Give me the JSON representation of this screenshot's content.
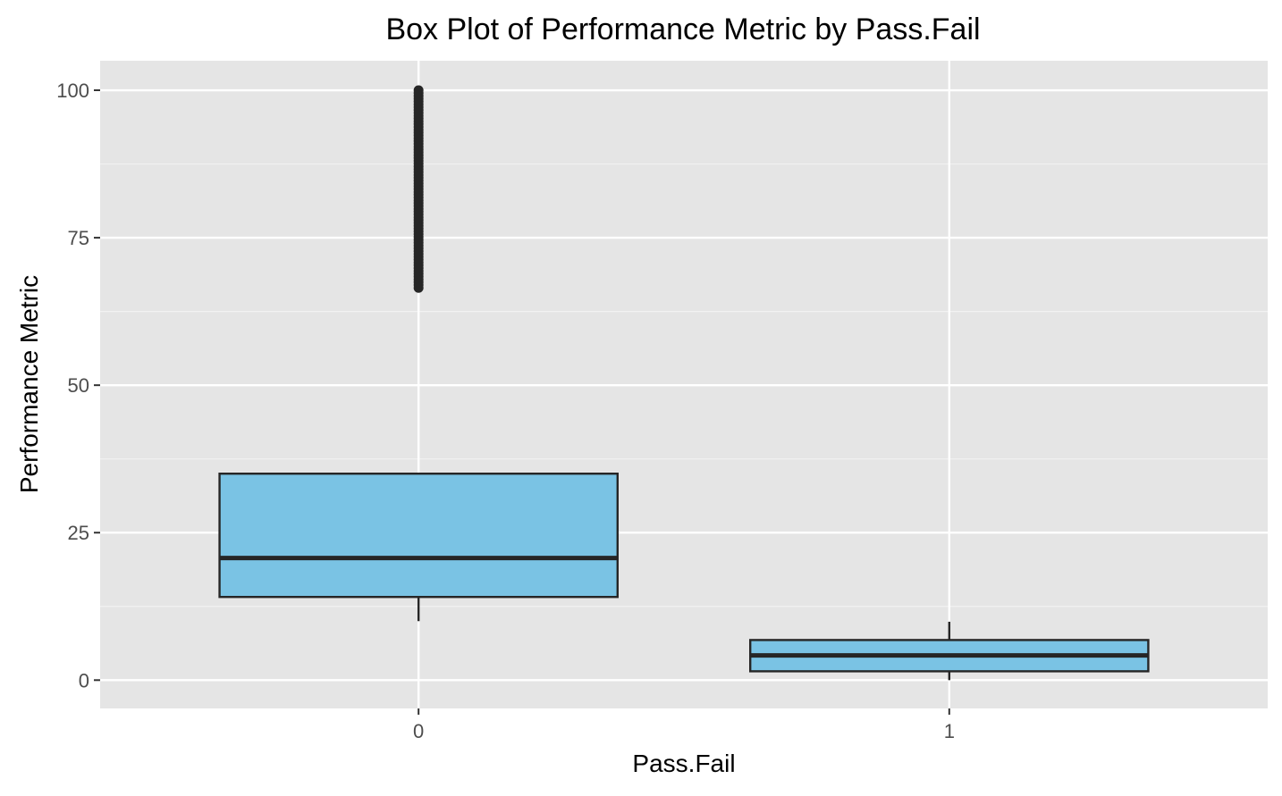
{
  "chart_data": {
    "type": "box",
    "title": "Box Plot of Performance Metric by Pass.Fail",
    "xlabel": "Pass.Fail",
    "ylabel": "Performance Metric",
    "categories": [
      "0",
      "1"
    ],
    "ylim": [
      -4.8,
      105
    ],
    "y_ticks": [
      0,
      25,
      50,
      75,
      100
    ],
    "y_tick_labels": [
      "0",
      "25",
      "50",
      "75",
      "100"
    ],
    "y_minor_ticks": [
      12.5,
      37.5,
      62.5,
      87.5
    ],
    "grid": true,
    "boxes": [
      {
        "category": "0",
        "whisker_low": 10,
        "q1": 14.1,
        "median": 20.7,
        "q3": 35,
        "whisker_high": 35,
        "outliers_range": [
          66.5,
          100
        ]
      },
      {
        "category": "1",
        "whisker_low": 0,
        "q1": 1.5,
        "median": 4.2,
        "q3": 6.8,
        "whisker_high": 9.9,
        "outliers_range": []
      }
    ],
    "colors": {
      "box_fill": "#7AC3E4",
      "box_stroke": "#262626",
      "panel_background": "#E5E5E5",
      "grid_major": "#FFFFFF",
      "grid_minor": "#F2F2F2",
      "outlier": "#262626"
    }
  }
}
